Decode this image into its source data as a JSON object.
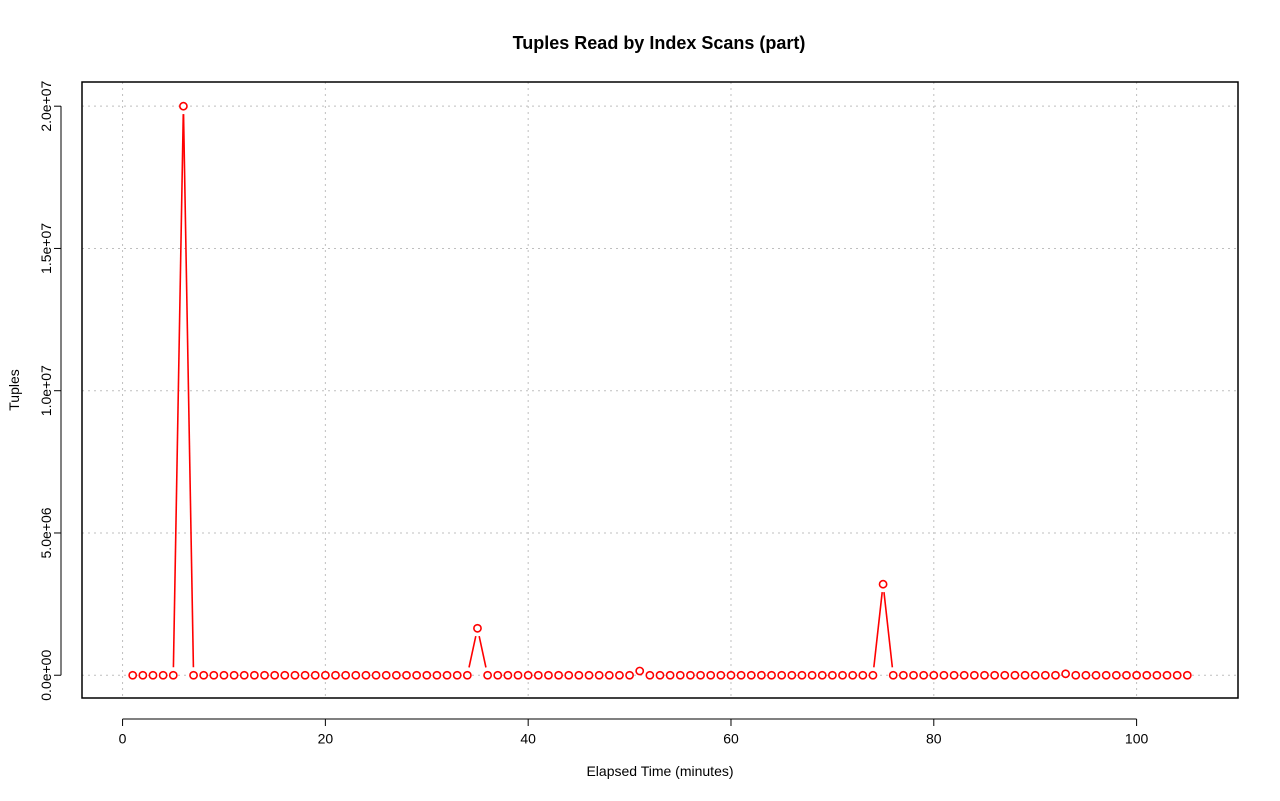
{
  "chart_data": {
    "type": "line",
    "title": "Tuples Read by Index Scans (part)",
    "xlabel": "Elapsed Time (minutes)",
    "ylabel": "Tuples",
    "xlim": [
      -4,
      110
    ],
    "ylim": [
      -800000,
      20850000
    ],
    "x_ticks": [
      0,
      20,
      40,
      60,
      80,
      100
    ],
    "x_tick_labels": [
      "0",
      "20",
      "40",
      "60",
      "80",
      "100"
    ],
    "y_ticks": [
      0,
      5000000,
      10000000,
      15000000,
      20000000
    ],
    "y_tick_labels": [
      "0.0e+00",
      "5.0e+06",
      "1.0e+07",
      "1.5e+07",
      "2.0e+07"
    ],
    "grid": true,
    "series_color": "#ff0000",
    "marker": "open-circle",
    "x": [
      1,
      2,
      3,
      4,
      5,
      6,
      7,
      8,
      9,
      10,
      11,
      12,
      13,
      14,
      15,
      16,
      17,
      18,
      19,
      20,
      21,
      22,
      23,
      24,
      25,
      26,
      27,
      28,
      29,
      30,
      31,
      32,
      33,
      34,
      35,
      36,
      37,
      38,
      39,
      40,
      41,
      42,
      43,
      44,
      45,
      46,
      47,
      48,
      49,
      50,
      51,
      52,
      53,
      54,
      55,
      56,
      57,
      58,
      59,
      60,
      61,
      62,
      63,
      64,
      65,
      66,
      67,
      68,
      69,
      70,
      71,
      72,
      73,
      74,
      75,
      76,
      77,
      78,
      79,
      80,
      81,
      82,
      83,
      84,
      85,
      86,
      87,
      88,
      89,
      90,
      91,
      92,
      93,
      94,
      95,
      96,
      97,
      98,
      99,
      100,
      101,
      102,
      103,
      104,
      105
    ],
    "y": [
      0,
      0,
      0,
      0,
      0,
      20000000,
      0,
      0,
      0,
      0,
      0,
      0,
      0,
      0,
      0,
      0,
      0,
      0,
      0,
      0,
      0,
      0,
      0,
      0,
      0,
      0,
      0,
      0,
      0,
      0,
      0,
      0,
      0,
      0,
      1650000,
      0,
      0,
      0,
      0,
      0,
      0,
      0,
      0,
      0,
      0,
      0,
      0,
      0,
      0,
      0,
      150000,
      0,
      0,
      0,
      0,
      0,
      0,
      0,
      0,
      0,
      0,
      0,
      0,
      0,
      0,
      0,
      0,
      0,
      0,
      0,
      0,
      0,
      0,
      0,
      3200000,
      0,
      0,
      0,
      0,
      0,
      0,
      0,
      0,
      0,
      0,
      0,
      0,
      0,
      0,
      0,
      0,
      0,
      50000,
      0,
      0,
      0,
      0,
      0,
      0,
      0,
      0,
      0,
      0,
      0,
      0
    ]
  }
}
